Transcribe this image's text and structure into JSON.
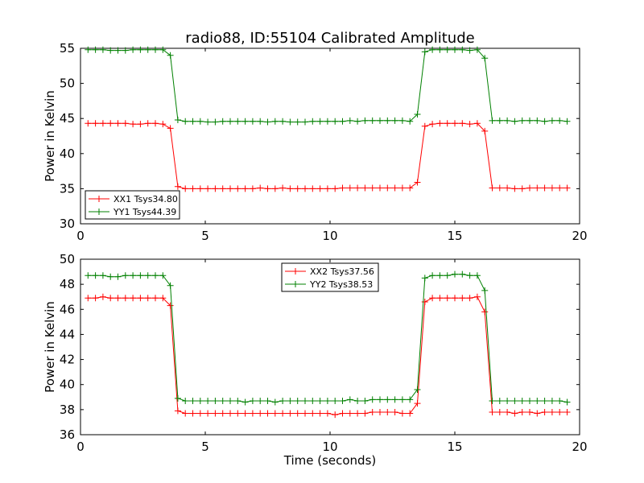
{
  "figure": {
    "title": "radio88, ID:55104 Calibrated Amplitude"
  },
  "chart_data": [
    {
      "type": "line",
      "ylabel": "Power in Kelvin",
      "xlabel": "",
      "xlim": [
        0,
        20
      ],
      "ylim": [
        30,
        55
      ],
      "xticks": [
        0,
        5,
        10,
        15,
        20
      ],
      "yticks": [
        30,
        35,
        40,
        45,
        50,
        55
      ],
      "grid": false,
      "legend_position": "lower-left",
      "x": [
        0.3,
        0.6,
        0.9,
        1.2,
        1.5,
        1.8,
        2.1,
        2.4,
        2.7,
        3.0,
        3.3,
        3.6,
        3.9,
        4.2,
        4.5,
        4.8,
        5.1,
        5.4,
        5.7,
        6.0,
        6.3,
        6.6,
        6.9,
        7.2,
        7.5,
        7.8,
        8.1,
        8.4,
        8.7,
        9.0,
        9.3,
        9.6,
        9.9,
        10.2,
        10.5,
        10.8,
        11.1,
        11.4,
        11.7,
        12.0,
        12.3,
        12.6,
        12.9,
        13.2,
        13.5,
        13.8,
        14.1,
        14.4,
        14.7,
        15.0,
        15.3,
        15.6,
        15.9,
        16.2,
        16.5,
        16.8,
        17.1,
        17.4,
        17.7,
        18.0,
        18.3,
        18.6,
        18.9,
        19.2,
        19.5
      ],
      "series": [
        {
          "name": "XX1 Tsys34.80",
          "color": "#ff0000",
          "values": [
            44.3,
            44.3,
            44.3,
            44.3,
            44.3,
            44.3,
            44.2,
            44.2,
            44.3,
            44.3,
            44.2,
            43.6,
            35.3,
            35.0,
            35.0,
            35.0,
            35.0,
            35.0,
            35.0,
            35.0,
            35.0,
            35.0,
            35.0,
            35.1,
            35.0,
            35.0,
            35.1,
            35.0,
            35.0,
            35.0,
            35.0,
            35.0,
            35.0,
            35.0,
            35.1,
            35.1,
            35.1,
            35.1,
            35.1,
            35.1,
            35.1,
            35.1,
            35.1,
            35.1,
            35.9,
            43.9,
            44.2,
            44.3,
            44.3,
            44.3,
            44.3,
            44.2,
            44.3,
            43.2,
            35.1,
            35.1,
            35.1,
            35.0,
            35.0,
            35.1,
            35.1,
            35.1,
            35.1,
            35.1,
            35.1
          ]
        },
        {
          "name": "YY1 Tsys44.39",
          "color": "#008000",
          "values": [
            54.8,
            54.8,
            54.8,
            54.7,
            54.7,
            54.7,
            54.8,
            54.8,
            54.8,
            54.8,
            54.8,
            54.0,
            44.8,
            44.6,
            44.6,
            44.6,
            44.5,
            44.5,
            44.6,
            44.6,
            44.6,
            44.6,
            44.6,
            44.6,
            44.5,
            44.6,
            44.6,
            44.5,
            44.5,
            44.5,
            44.6,
            44.6,
            44.6,
            44.6,
            44.6,
            44.7,
            44.6,
            44.7,
            44.7,
            44.7,
            44.7,
            44.7,
            44.7,
            44.6,
            45.6,
            54.5,
            54.8,
            54.8,
            54.8,
            54.8,
            54.8,
            54.7,
            54.8,
            53.6,
            44.7,
            44.7,
            44.7,
            44.6,
            44.7,
            44.7,
            44.7,
            44.6,
            44.7,
            44.7,
            44.6
          ]
        }
      ]
    },
    {
      "type": "line",
      "ylabel": "Power in Kelvin",
      "xlabel": "Time (seconds)",
      "xlim": [
        0,
        20
      ],
      "ylim": [
        36,
        50
      ],
      "xticks": [
        0,
        5,
        10,
        15,
        20
      ],
      "yticks": [
        36,
        38,
        40,
        42,
        44,
        46,
        48,
        50
      ],
      "grid": false,
      "legend_position": "top-center",
      "x": [
        0.3,
        0.6,
        0.9,
        1.2,
        1.5,
        1.8,
        2.1,
        2.4,
        2.7,
        3.0,
        3.3,
        3.6,
        3.9,
        4.2,
        4.5,
        4.8,
        5.1,
        5.4,
        5.7,
        6.0,
        6.3,
        6.6,
        6.9,
        7.2,
        7.5,
        7.8,
        8.1,
        8.4,
        8.7,
        9.0,
        9.3,
        9.6,
        9.9,
        10.2,
        10.5,
        10.8,
        11.1,
        11.4,
        11.7,
        12.0,
        12.3,
        12.6,
        12.9,
        13.2,
        13.5,
        13.8,
        14.1,
        14.4,
        14.7,
        15.0,
        15.3,
        15.6,
        15.9,
        16.2,
        16.5,
        16.8,
        17.1,
        17.4,
        17.7,
        18.0,
        18.3,
        18.6,
        18.9,
        19.2,
        19.5
      ],
      "series": [
        {
          "name": "XX2 Tsys37.56",
          "color": "#ff0000",
          "values": [
            46.9,
            46.9,
            47.0,
            46.9,
            46.9,
            46.9,
            46.9,
            46.9,
            46.9,
            46.9,
            46.9,
            46.3,
            37.9,
            37.7,
            37.7,
            37.7,
            37.7,
            37.7,
            37.7,
            37.7,
            37.7,
            37.7,
            37.7,
            37.7,
            37.7,
            37.7,
            37.7,
            37.7,
            37.7,
            37.7,
            37.7,
            37.7,
            37.7,
            37.6,
            37.7,
            37.7,
            37.7,
            37.7,
            37.8,
            37.8,
            37.8,
            37.8,
            37.7,
            37.7,
            38.5,
            46.6,
            46.9,
            46.9,
            46.9,
            46.9,
            46.9,
            46.9,
            47.0,
            45.8,
            37.8,
            37.8,
            37.8,
            37.7,
            37.8,
            37.8,
            37.7,
            37.8,
            37.8,
            37.8,
            37.8
          ]
        },
        {
          "name": "YY2 Tsys38.53",
          "color": "#008000",
          "values": [
            48.7,
            48.7,
            48.7,
            48.6,
            48.6,
            48.7,
            48.7,
            48.7,
            48.7,
            48.7,
            48.7,
            47.9,
            38.9,
            38.7,
            38.7,
            38.7,
            38.7,
            38.7,
            38.7,
            38.7,
            38.7,
            38.6,
            38.7,
            38.7,
            38.7,
            38.6,
            38.7,
            38.7,
            38.7,
            38.7,
            38.7,
            38.7,
            38.7,
            38.7,
            38.7,
            38.8,
            38.7,
            38.7,
            38.8,
            38.8,
            38.8,
            38.8,
            38.8,
            38.8,
            39.6,
            48.5,
            48.7,
            48.7,
            48.7,
            48.8,
            48.8,
            48.7,
            48.7,
            47.5,
            38.7,
            38.7,
            38.7,
            38.7,
            38.7,
            38.7,
            38.7,
            38.7,
            38.7,
            38.7,
            38.6
          ]
        }
      ]
    }
  ]
}
